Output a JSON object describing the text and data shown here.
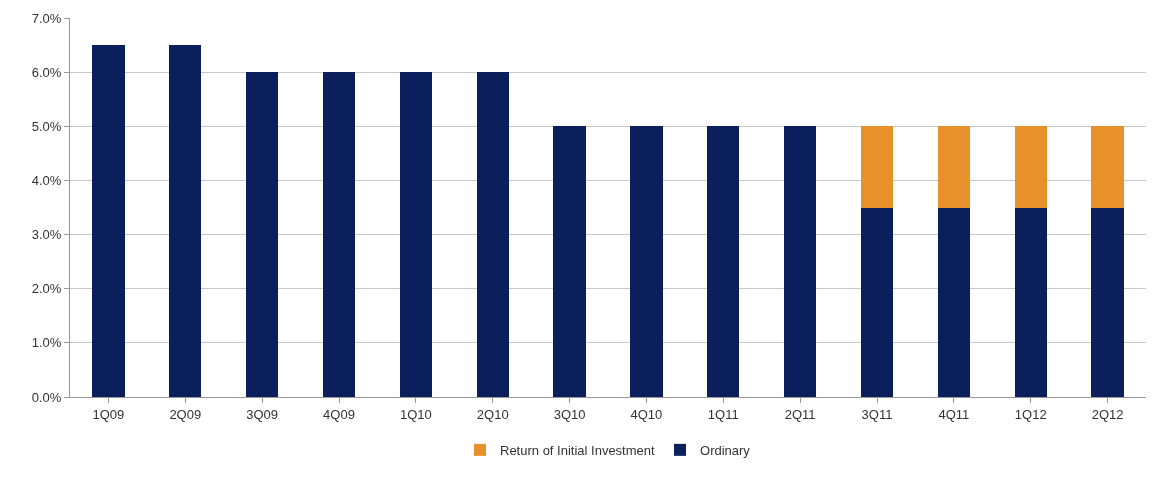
{
  "chart_data": {
    "type": "bar",
    "stacked": true,
    "categories": [
      "1Q09",
      "2Q09",
      "3Q09",
      "4Q09",
      "1Q10",
      "2Q10",
      "3Q10",
      "4Q10",
      "1Q11",
      "2Q11",
      "3Q11",
      "4Q11",
      "1Q12",
      "2Q12"
    ],
    "series": [
      {
        "name": "Ordinary",
        "color": "#0a1f5c",
        "values": [
          6.5,
          6.5,
          6.0,
          6.0,
          6.0,
          6.0,
          5.0,
          5.0,
          5.0,
          5.0,
          3.5,
          3.5,
          3.5,
          3.5
        ]
      },
      {
        "name": "Return of Initial Investment",
        "color": "#e8912a",
        "values": [
          null,
          null,
          null,
          null,
          null,
          null,
          null,
          null,
          null,
          null,
          1.5,
          1.5,
          1.5,
          1.5
        ]
      }
    ],
    "ylim": [
      0,
      7
    ],
    "yticks": [
      {
        "value": 0,
        "label": "0.0%"
      },
      {
        "value": 1,
        "label": "1.0%"
      },
      {
        "value": 2,
        "label": "2.0%"
      },
      {
        "value": 3,
        "label": "3.0%"
      },
      {
        "value": 4,
        "label": "4.0%"
      },
      {
        "value": 5,
        "label": "5.0%"
      },
      {
        "value": 6,
        "label": "6.0%"
      },
      {
        "value": 7,
        "label": "7.0%"
      }
    ],
    "grid": "y",
    "legend": "bottom"
  }
}
